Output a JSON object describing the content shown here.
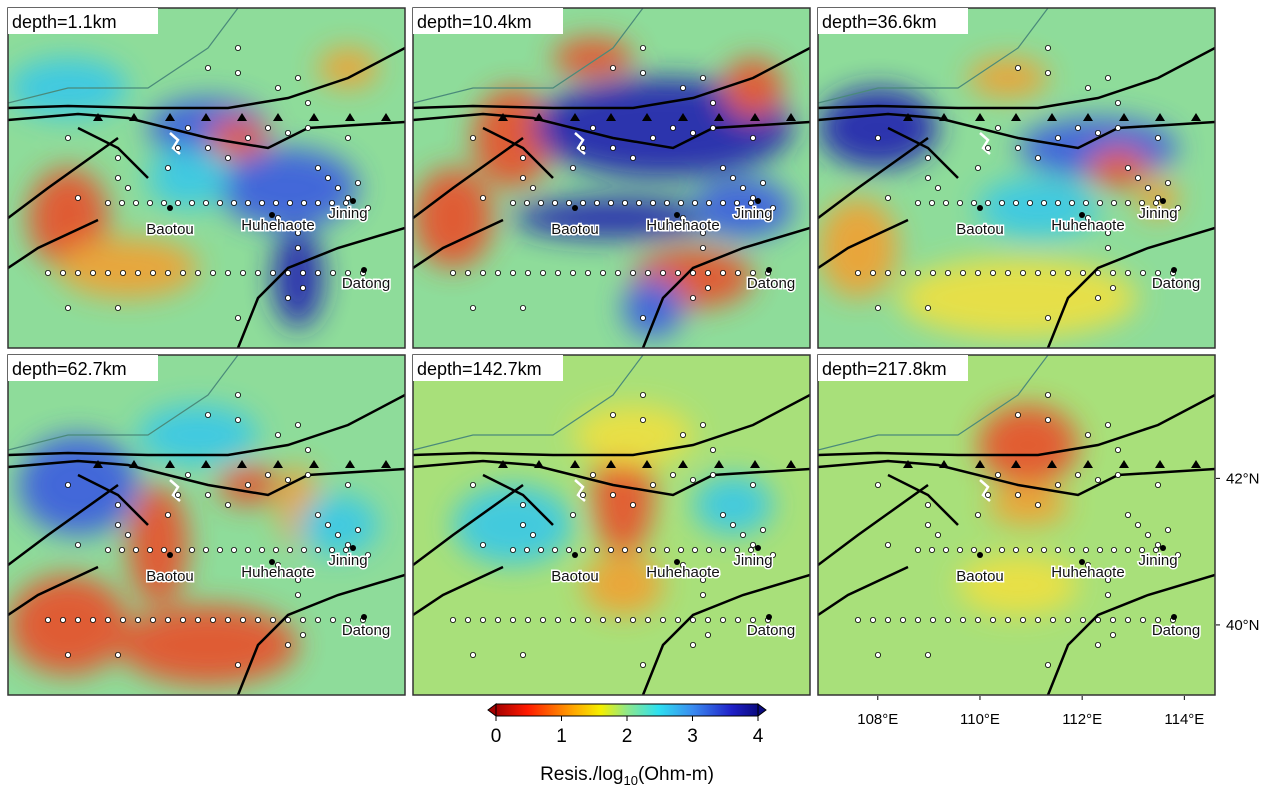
{
  "panels": [
    {
      "label": "depth=1.1km"
    },
    {
      "label": "depth=10.4km"
    },
    {
      "label": "depth=36.6km"
    },
    {
      "label": "depth=62.7km"
    },
    {
      "label": "depth=142.7km"
    },
    {
      "label": "depth=217.8km"
    }
  ],
  "cities": [
    "Baotou",
    "Huhehaote",
    "Jining",
    "Datong"
  ],
  "map_axes": {
    "lonlim": [
      106.83,
      114.6
    ],
    "latlim": [
      39.03,
      43.67
    ],
    "xticks": [
      {
        "value": 108,
        "label": "108°E"
      },
      {
        "value": 110,
        "label": "110°E"
      },
      {
        "value": 112,
        "label": "112°E"
      },
      {
        "value": 114,
        "label": "114°E"
      }
    ],
    "yticks": [
      {
        "value": 42,
        "label": "42°N"
      },
      {
        "value": 40,
        "label": "40°N"
      }
    ]
  },
  "colorbar": {
    "clim": [
      0,
      4
    ],
    "ticks": [
      0,
      1,
      2,
      3,
      4
    ],
    "label": {
      "prefix": "Resis./log",
      "sub": "10",
      "suffix": "(Ohm-m)"
    }
  }
}
